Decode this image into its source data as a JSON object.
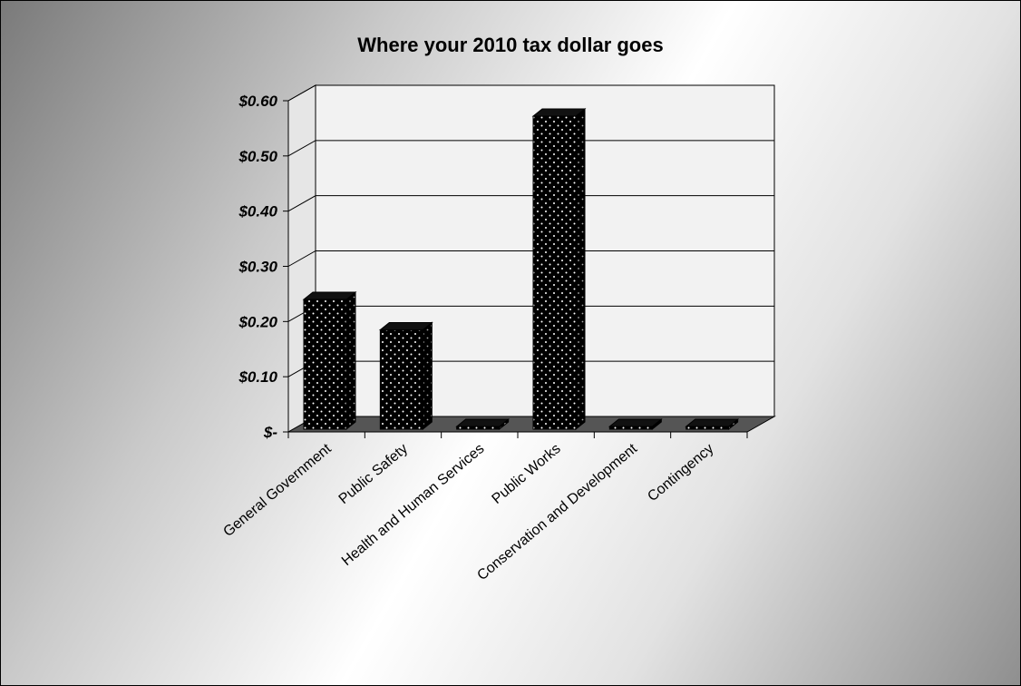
{
  "chart_data": {
    "type": "bar",
    "title": "Where your 2010 tax dollar goes",
    "xlabel": "",
    "ylabel": "",
    "categories": [
      "General Government",
      "Public Safety",
      "Health and Human Services",
      "Public Works",
      "Conservation and Development",
      "Contingency"
    ],
    "values": [
      0.24,
      0.185,
      0.003,
      0.572,
      0.003,
      0.003
    ],
    "ylim": [
      0,
      0.6
    ],
    "y_ticks": [
      0,
      0.1,
      0.2,
      0.3,
      0.4,
      0.5,
      0.6
    ],
    "y_tick_labels": [
      "$-",
      "$0.10",
      "$0.20",
      "$0.30",
      "$0.40",
      "$0.50",
      "$0.60"
    ],
    "grid": true,
    "legend": "none",
    "style": "3d-column",
    "colors": {
      "bar_fill": "#000000",
      "bar_dots": "#ffffff",
      "floor": "#555555",
      "wall": "#f2f2f2",
      "axis": "#000000"
    }
  }
}
